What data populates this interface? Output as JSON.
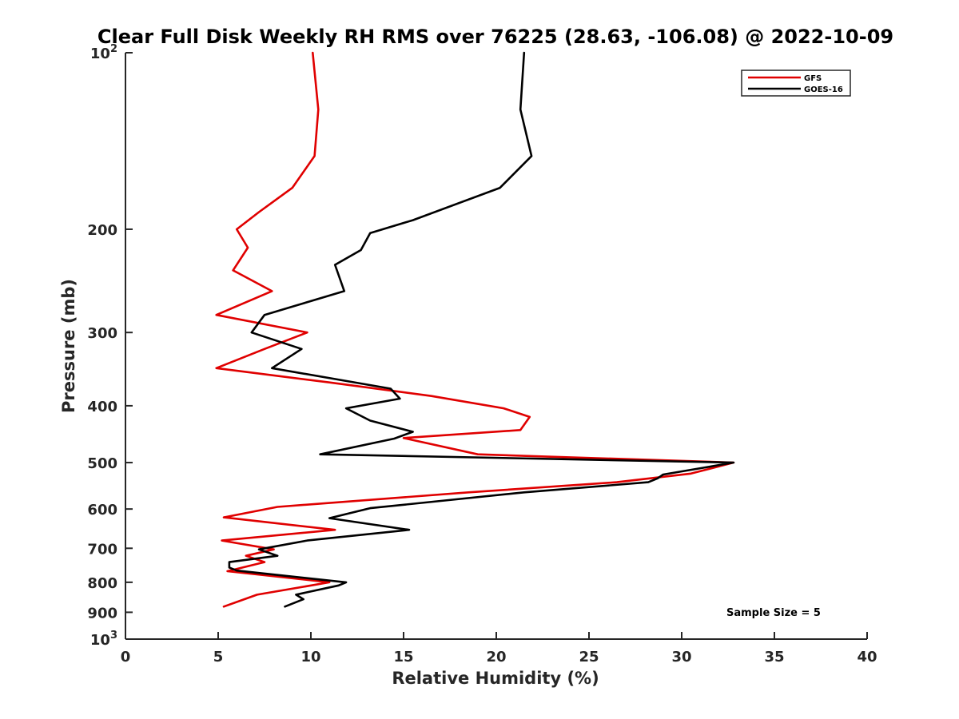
{
  "chart_data": {
    "type": "line",
    "title": "Clear Full Disk Weekly RH RMS over 76225 (28.63, -106.08) @ 2022-10-09",
    "xlabel": "Relative Humidity (%)",
    "ylabel": "Pressure (mb)",
    "xlim": [
      0,
      40
    ],
    "ylim": [
      100,
      1000
    ],
    "yscale": "log",
    "y_reversed": true,
    "grid": false,
    "legend": "top-right",
    "x_ticks": [
      "0",
      "5",
      "10",
      "15",
      "20",
      "25",
      "30",
      "35",
      "40"
    ],
    "y_ticks": [
      {
        "value": 100,
        "base": "10",
        "exp": "2"
      },
      {
        "value": 200,
        "label": "200"
      },
      {
        "value": 300,
        "label": "300"
      },
      {
        "value": 400,
        "label": "400"
      },
      {
        "value": 500,
        "label": "500"
      },
      {
        "value": 600,
        "label": "600"
      },
      {
        "value": 700,
        "label": "700"
      },
      {
        "value": 800,
        "label": "800"
      },
      {
        "value": 900,
        "label": "900"
      },
      {
        "value": 1000,
        "base": "10",
        "exp": "3"
      }
    ],
    "annotation": "Sample Size = 5",
    "series": [
      {
        "name": "GFS",
        "color": "#e00000",
        "points": [
          [
            10.1,
            100
          ],
          [
            10.4,
            125
          ],
          [
            10.2,
            150
          ],
          [
            9.0,
            170
          ],
          [
            7.2,
            187
          ],
          [
            6.0,
            200
          ],
          [
            6.6,
            215
          ],
          [
            5.8,
            235
          ],
          [
            7.9,
            255
          ],
          [
            4.9,
            280
          ],
          [
            9.8,
            300
          ],
          [
            7.5,
            320
          ],
          [
            4.9,
            345
          ],
          [
            11.0,
            365
          ],
          [
            16.5,
            385
          ],
          [
            20.4,
            404
          ],
          [
            21.8,
            418
          ],
          [
            21.3,
            440
          ],
          [
            15.0,
            454
          ],
          [
            19.0,
            484
          ],
          [
            32.8,
            500
          ],
          [
            30.5,
            522
          ],
          [
            26.5,
            540
          ],
          [
            18.5,
            562
          ],
          [
            8.2,
            595
          ],
          [
            5.3,
            620
          ],
          [
            11.3,
            651
          ],
          [
            5.2,
            679
          ],
          [
            8.0,
            703
          ],
          [
            6.5,
            721
          ],
          [
            7.5,
            739
          ],
          [
            5.5,
            766
          ],
          [
            11.0,
            800
          ],
          [
            7.1,
            840
          ],
          [
            6.2,
            860
          ],
          [
            5.3,
            880
          ]
        ]
      },
      {
        "name": "GOES-16",
        "color": "#000000",
        "points": [
          [
            21.5,
            100
          ],
          [
            21.3,
            125
          ],
          [
            21.9,
            150
          ],
          [
            20.2,
            170
          ],
          [
            15.5,
            193
          ],
          [
            13.2,
            203
          ],
          [
            12.7,
            217
          ],
          [
            11.3,
            230
          ],
          [
            11.8,
            255
          ],
          [
            7.5,
            280
          ],
          [
            6.8,
            300
          ],
          [
            9.5,
            320
          ],
          [
            7.9,
            345
          ],
          [
            14.3,
            374
          ],
          [
            14.8,
            389
          ],
          [
            11.9,
            404
          ],
          [
            13.2,
            424
          ],
          [
            15.5,
            443
          ],
          [
            14.5,
            455
          ],
          [
            10.5,
            484
          ],
          [
            32.8,
            500
          ],
          [
            29.0,
            524
          ],
          [
            28.7,
            532
          ],
          [
            28.2,
            540
          ],
          [
            21.5,
            562
          ],
          [
            13.2,
            598
          ],
          [
            11.0,
            622
          ],
          [
            15.3,
            651
          ],
          [
            9.8,
            679
          ],
          [
            7.2,
            703
          ],
          [
            8.2,
            721
          ],
          [
            5.6,
            739
          ],
          [
            5.6,
            755
          ],
          [
            6.0,
            764
          ],
          [
            11.9,
            800
          ],
          [
            11.5,
            810
          ],
          [
            9.2,
            840
          ],
          [
            9.6,
            855
          ],
          [
            8.6,
            880
          ]
        ]
      }
    ]
  }
}
